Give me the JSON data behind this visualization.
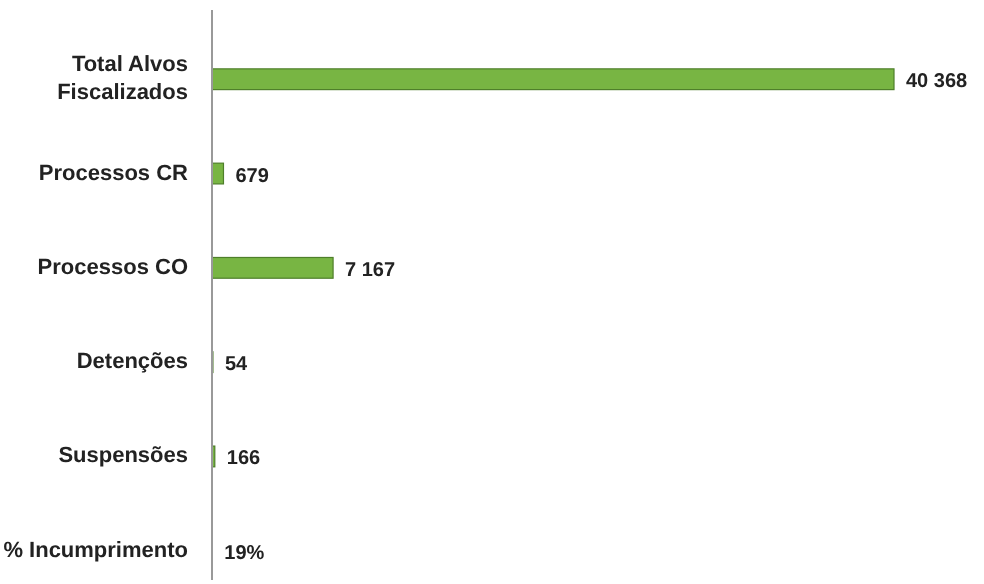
{
  "chart_data": {
    "type": "bar",
    "orientation": "horizontal",
    "categories": [
      "Total Alvos\nFiscalizados",
      "Processos CR",
      "Processos CO",
      "Detenções",
      "Suspensões",
      "% Incumprimento"
    ],
    "values": [
      40368,
      679,
      7167,
      54,
      166,
      19
    ],
    "value_labels": [
      "40 368",
      "679",
      "7 167",
      "54",
      "166",
      "19%"
    ],
    "color": "#78b543"
  }
}
